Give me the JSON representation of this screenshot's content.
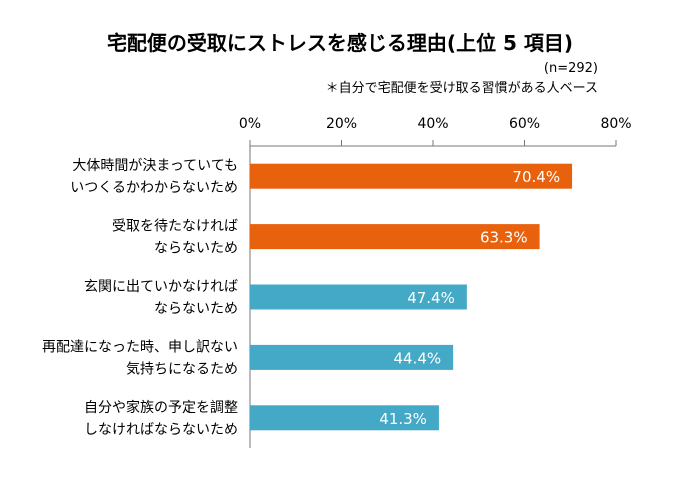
{
  "chart_data": {
    "type": "bar",
    "orientation": "horizontal",
    "title": "宅配便の受取にストレスを感じる理由(上位 5 項目)",
    "subtitle_n": "(n=292)",
    "subtitle_note": "＊自分で宅配便を受け取る習慣がある人ベース",
    "xlim": [
      0,
      80
    ],
    "x_ticks": [
      "0%",
      "20%",
      "40%",
      "60%",
      "80%"
    ],
    "x_tick_values": [
      0,
      20,
      40,
      60,
      80
    ],
    "grid": false,
    "categories": [
      [
        "大体時間が決まっていても",
        "いつくるかわからないため"
      ],
      [
        "受取を待たなければ",
        "ならないため"
      ],
      [
        "玄関に出ていかなければ",
        "ならないため"
      ],
      [
        "再配達になった時、申し訳ない",
        "気持ちになるため"
      ],
      [
        "自分や家族の予定を調整",
        "しなければならないため"
      ]
    ],
    "values": [
      70.4,
      63.3,
      47.4,
      44.4,
      41.3
    ],
    "value_labels": [
      "70.4%",
      "63.3%",
      "47.4%",
      "44.4%",
      "41.3%"
    ],
    "bar_colors": [
      "#E8620E",
      "#E8620E",
      "#44A9C6",
      "#44A9C6",
      "#44A9C6"
    ]
  }
}
